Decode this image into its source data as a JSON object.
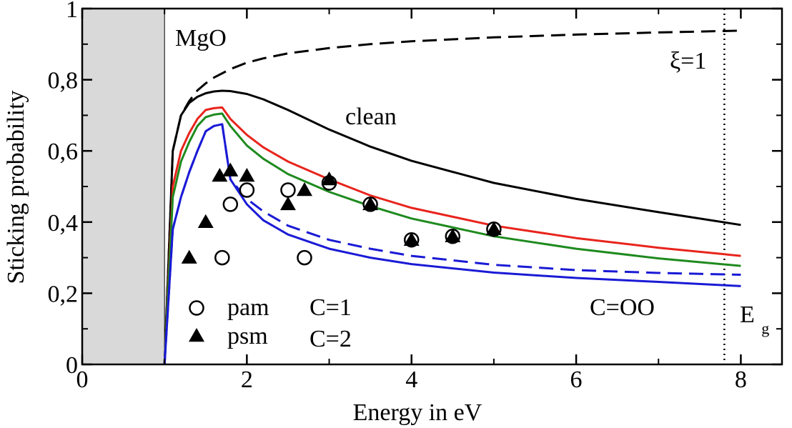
{
  "chart_data": {
    "type": "line",
    "xlabel": "Energy in eV",
    "ylabel": "Sticking probability",
    "xlim": [
      0,
      8.5
    ],
    "ylim": [
      0,
      1
    ],
    "xticks": [
      0,
      2,
      4,
      6,
      8
    ],
    "yticks": [
      0,
      0.2,
      0.4,
      0.6,
      0.8,
      1
    ],
    "xtick_labels": [
      "0",
      "2",
      "4",
      "6",
      "8"
    ],
    "ytick_labels": [
      "0",
      "0,2",
      "0,4",
      "0,6",
      "0,8",
      "1"
    ],
    "shaded_region": {
      "x": [
        0,
        1
      ],
      "color": "#d9d9d9"
    },
    "annotations": {
      "material": "MgO",
      "xi": "ξ=1",
      "clean": "clean",
      "gap_main": "E",
      "gap_sub": "g"
    },
    "gap_energy": 7.8,
    "series": [
      {
        "name": "ξ=1",
        "color": "#000000",
        "style": "dashed",
        "label_key": "xi",
        "x": [
          1.0,
          1.1,
          1.2,
          1.3,
          1.4,
          1.5,
          1.6,
          1.8,
          2.0,
          2.2,
          2.5,
          3.0,
          3.5,
          4.0,
          5.0,
          6.0,
          7.0,
          8.0
        ],
        "y": [
          0.0,
          0.6,
          0.7,
          0.74,
          0.77,
          0.79,
          0.806,
          0.83,
          0.848,
          0.86,
          0.874,
          0.889,
          0.9,
          0.908,
          0.919,
          0.927,
          0.933,
          0.938
        ]
      },
      {
        "name": "clean",
        "color": "#000000",
        "style": "solid",
        "label_key": "clean",
        "x": [
          1.0,
          1.1,
          1.2,
          1.3,
          1.4,
          1.5,
          1.6,
          1.7,
          1.8,
          2.0,
          2.2,
          2.5,
          3.0,
          3.5,
          4.0,
          5.0,
          6.0,
          7.0,
          8.0
        ],
        "y": [
          0.0,
          0.6,
          0.7,
          0.735,
          0.752,
          0.762,
          0.767,
          0.769,
          0.768,
          0.76,
          0.745,
          0.715,
          0.66,
          0.612,
          0.572,
          0.51,
          0.465,
          0.428,
          0.392
        ]
      },
      {
        "name": "C=1",
        "color": "#e8241c",
        "style": "solid",
        "label_key": "c1",
        "x": [
          1.0,
          1.1,
          1.2,
          1.3,
          1.4,
          1.5,
          1.6,
          1.7,
          1.8,
          2.0,
          2.2,
          2.5,
          3.0,
          3.5,
          4.0,
          5.0,
          6.0,
          7.0,
          8.0
        ],
        "y": [
          0.0,
          0.5,
          0.6,
          0.65,
          0.69,
          0.715,
          0.72,
          0.722,
          0.69,
          0.645,
          0.61,
          0.57,
          0.52,
          0.475,
          0.44,
          0.39,
          0.355,
          0.328,
          0.305
        ]
      },
      {
        "name": "C=2",
        "color": "#1e8a1e",
        "style": "solid",
        "label_key": "c2",
        "x": [
          1.0,
          1.1,
          1.2,
          1.3,
          1.4,
          1.5,
          1.6,
          1.7,
          1.8,
          2.0,
          2.2,
          2.5,
          3.0,
          3.5,
          4.0,
          5.0,
          6.0,
          7.0,
          8.0
        ],
        "y": [
          0.0,
          0.47,
          0.57,
          0.625,
          0.67,
          0.695,
          0.702,
          0.705,
          0.67,
          0.615,
          0.578,
          0.535,
          0.485,
          0.445,
          0.41,
          0.36,
          0.325,
          0.298,
          0.277
        ]
      },
      {
        "name": "C=OO dashed",
        "color": "#1a1ad6",
        "style": "dashed",
        "x": [
          1.0,
          1.1,
          1.2,
          1.3,
          1.4,
          1.5,
          1.6,
          1.7,
          1.8,
          2.0,
          2.2,
          2.5,
          3.0,
          3.5,
          4.0,
          5.0,
          6.0,
          7.0,
          8.0
        ],
        "y": [
          0.0,
          0.38,
          0.47,
          0.54,
          0.6,
          0.655,
          0.67,
          0.675,
          0.52,
          0.465,
          0.43,
          0.39,
          0.35,
          0.325,
          0.305,
          0.28,
          0.265,
          0.257,
          0.252
        ]
      },
      {
        "name": "C=OO",
        "color": "#1a1ad6",
        "style": "solid",
        "label_key": "coo",
        "x": [
          1.0,
          1.1,
          1.2,
          1.3,
          1.4,
          1.5,
          1.6,
          1.7,
          1.8,
          2.0,
          2.2,
          2.5,
          3.0,
          3.5,
          4.0,
          5.0,
          6.0,
          7.0,
          8.0
        ],
        "y": [
          0.0,
          0.38,
          0.47,
          0.54,
          0.6,
          0.655,
          0.67,
          0.675,
          0.52,
          0.45,
          0.405,
          0.365,
          0.325,
          0.3,
          0.282,
          0.258,
          0.243,
          0.232,
          0.22
        ]
      }
    ],
    "scatter": [
      {
        "name": "pam",
        "marker": "open-circle",
        "color": "#000000",
        "points": [
          [
            1.7,
            0.3
          ],
          [
            1.8,
            0.45
          ],
          [
            2.0,
            0.49
          ],
          [
            2.5,
            0.49
          ],
          [
            2.7,
            0.3
          ],
          [
            3.0,
            0.51
          ],
          [
            3.5,
            0.45
          ],
          [
            4.0,
            0.35
          ],
          [
            4.5,
            0.36
          ],
          [
            5.0,
            0.38
          ]
        ]
      },
      {
        "name": "psm",
        "marker": "filled-triangle",
        "color": "#000000",
        "points": [
          [
            1.3,
            0.3
          ],
          [
            1.5,
            0.4
          ],
          [
            1.67,
            0.53
          ],
          [
            1.8,
            0.545
          ],
          [
            2.0,
            0.53
          ],
          [
            2.5,
            0.45
          ],
          [
            2.7,
            0.49
          ],
          [
            3.0,
            0.52
          ],
          [
            3.5,
            0.45
          ],
          [
            4.0,
            0.35
          ],
          [
            4.5,
            0.36
          ],
          [
            5.0,
            0.38
          ]
        ]
      }
    ],
    "legend": {
      "markers": [
        {
          "label": "pam",
          "marker": "open-circle"
        },
        {
          "label": "psm",
          "marker": "filled-triangle"
        }
      ],
      "colored_labels": [
        {
          "key": "c1",
          "label": "C=1",
          "color": "#e8241c"
        },
        {
          "key": "c2",
          "label": "C=2",
          "color": "#1e8a1e"
        },
        {
          "key": "coo",
          "label": "C=OO",
          "color": "#1a1ad6"
        }
      ]
    }
  }
}
